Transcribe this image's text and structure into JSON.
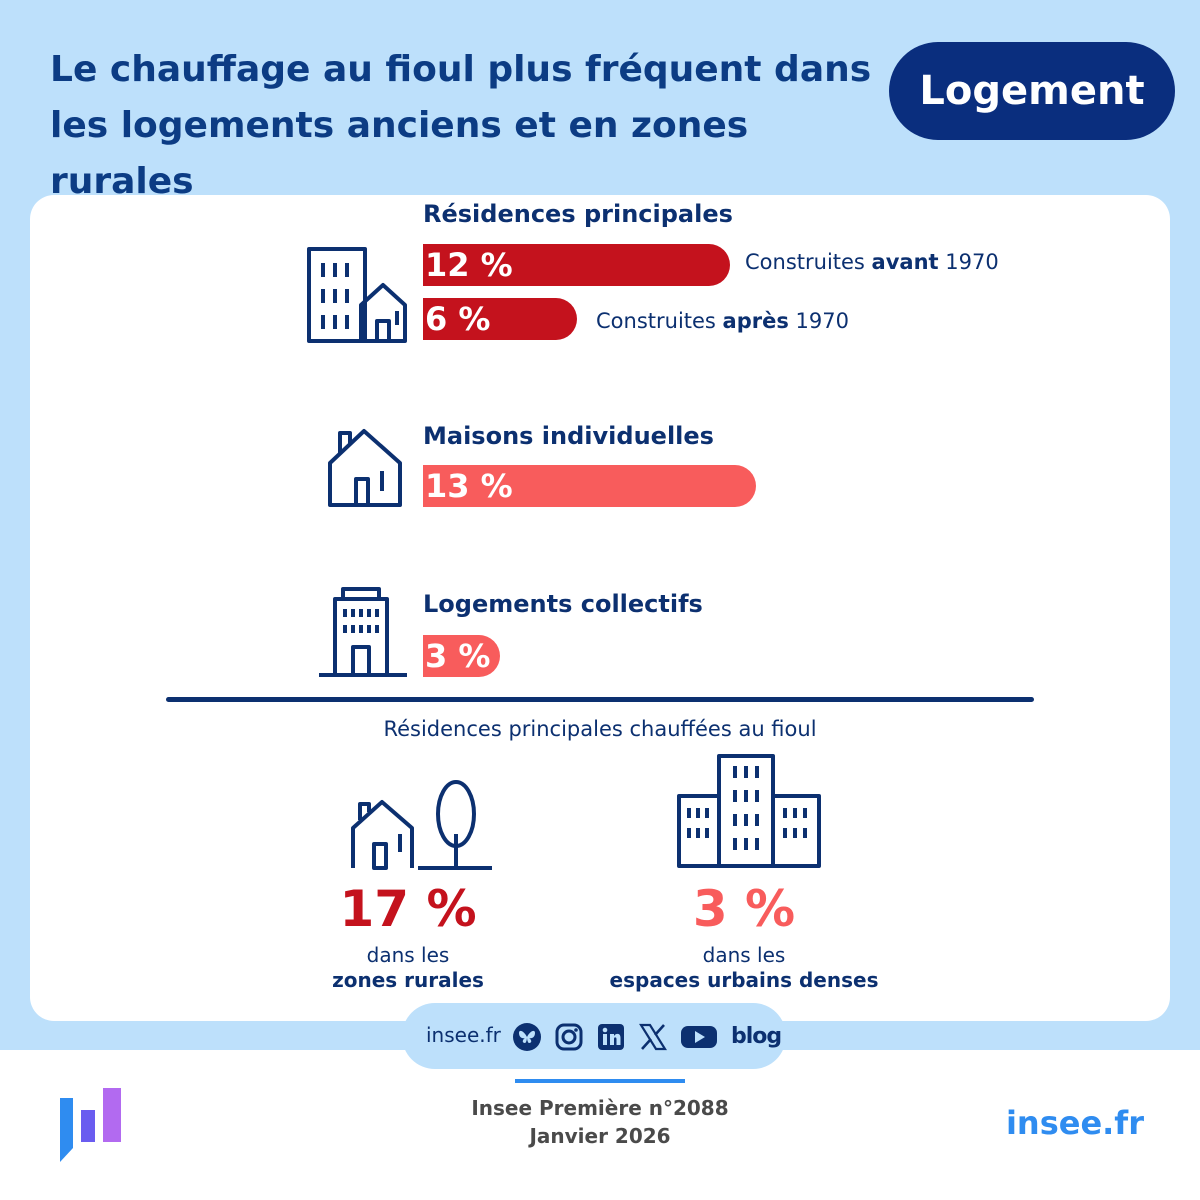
{
  "header": {
    "title_line1": "Le chauffage au fioul plus fréquent dans",
    "title_line2": "les logements anciens et en zones rurales",
    "tag": "Logement"
  },
  "colors": {
    "dark_red": "#c4121d",
    "light_red": "#f85c5c",
    "navy": "#0c3070",
    "sky": "#bde0fb",
    "accent_blue": "#2f8cf0"
  },
  "chart_data": {
    "type": "bar",
    "orientation": "horizontal",
    "unit": "%",
    "groups": [
      {
        "name": "Résidences principales",
        "icon": "buildings-house-icon",
        "bars": [
          {
            "label": "12 %",
            "value": 12,
            "note_prefix": "Construites ",
            "note_strong": "avant",
            "note_suffix": " 1970",
            "color": "dark_red"
          },
          {
            "label": "6 %",
            "value": 6,
            "note_prefix": "Construites ",
            "note_strong": "après",
            "note_suffix": " 1970",
            "color": "dark_red"
          }
        ]
      },
      {
        "name": "Maisons individuelles",
        "icon": "house-icon",
        "bars": [
          {
            "label": "13 %",
            "value": 13,
            "color": "light_red"
          }
        ]
      },
      {
        "name": "Logements collectifs",
        "icon": "apartment-building-icon",
        "bars": [
          {
            "label": "3 %",
            "value": 3,
            "color": "light_red"
          }
        ]
      }
    ],
    "comparison": {
      "subtitle": "Résidences principales chauffées au fioul",
      "items": [
        {
          "value": 17,
          "label": "17 %",
          "line1": "dans les",
          "line2": "zones rurales",
          "color": "dark_red",
          "icon": "house-tree-icon"
        },
        {
          "value": 3,
          "label": "3 %",
          "line1": "dans les",
          "line2": "espaces urbains denses",
          "color": "light_red",
          "icon": "city-buildings-icon"
        }
      ]
    }
  },
  "footer": {
    "site": "insee.fr",
    "social_icons": [
      "bluesky-icon",
      "instagram-icon",
      "linkedin-icon",
      "x-icon",
      "youtube-icon",
      "blog-icon"
    ],
    "blog_text": "blog",
    "publication": "Insee Première n°2088",
    "date": "Janvier 2026",
    "site_large": "insee.fr"
  }
}
